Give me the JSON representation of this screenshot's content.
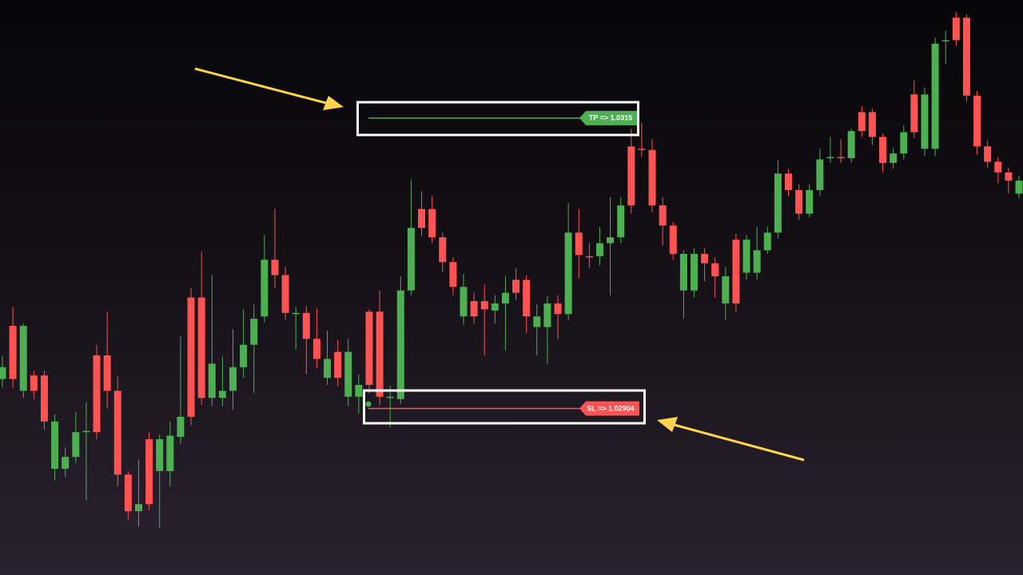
{
  "chart_data": {
    "type": "candlestick",
    "open": [
      1.02929,
      1.02974,
      1.02919,
      1.02932,
      1.02932,
      1.02853,
      1.02853,
      1.02863,
      1.02884,
      1.02949,
      1.02949,
      1.02919,
      1.02848,
      1.02817,
      1.02878,
      1.02851,
      1.02851,
      1.0288,
      1.02998,
      1.02998,
      1.02913,
      1.02913,
      1.02919,
      1.02939,
      1.02958,
      1.02982,
      1.0303,
      1.03017,
      1.02985,
      1.02985,
      1.02963,
      1.0293,
      1.02952,
      1.02914,
      1.02914,
      1.02986,
      1.02986,
      1.02913,
      1.02912,
      1.03004,
      1.03073,
      1.03073,
      1.03049,
      1.03028,
      1.02982,
      1.02995,
      1.02995,
      1.02987,
      1.02993,
      1.03013,
      1.03013,
      1.02973,
      1.02973,
      1.02993,
      1.02984,
      1.03053,
      1.03033,
      1.03033,
      1.03044,
      1.03049,
      1.03126,
      1.03124,
      1.03123,
      1.03076,
      1.03059,
      1.03004,
      1.03004,
      1.03035,
      1.03027,
      1.02993,
      1.03047,
      1.03019,
      1.03019,
      1.03038,
      1.03053,
      1.03103,
      1.03089,
      1.03069,
      1.03089,
      1.03117,
      1.03117,
      1.03116,
      1.03155,
      1.03155,
      1.03134,
      1.03112,
      1.0312,
      1.0317,
      1.03124,
      1.03124,
      1.03215,
      1.03235,
      1.03235,
      1.03169,
      1.03126,
      1.03113,
      1.03104,
      1.03086
    ],
    "high": [
      1.02949,
      1.0299,
      1.02976,
      1.02936,
      1.02936,
      1.02899,
      1.02871,
      1.02901,
      1.02909,
      1.02958,
      1.02986,
      1.02931,
      1.02851,
      1.02861,
      1.02884,
      1.02882,
      1.02893,
      1.02965,
      1.03006,
      1.03037,
      1.03017,
      1.02948,
      1.02971,
      1.02988,
      1.02992,
      1.03051,
      1.03073,
      1.03024,
      1.0299,
      1.02991,
      1.02989,
      1.0297,
      1.02962,
      1.02963,
      1.02933,
      1.02988,
      1.03004,
      1.02923,
      1.03016,
      1.03098,
      1.03088,
      1.03084,
      1.03053,
      1.03032,
      1.03018,
      1.03002,
      1.03009,
      1.03,
      1.03016,
      1.03023,
      1.03017,
      1.02992,
      1.02999,
      1.03,
      1.03078,
      1.03073,
      1.03044,
      1.03058,
      1.03083,
      1.03083,
      1.03141,
      1.03146,
      1.03132,
      1.03083,
      1.03062,
      1.03038,
      1.0304,
      1.0304,
      1.03032,
      1.03024,
      1.03052,
      1.03051,
      1.03058,
      1.03058,
      1.03114,
      1.03107,
      1.03094,
      1.03094,
      1.03124,
      1.03134,
      1.03132,
      1.03141,
      1.0316,
      1.03158,
      1.03137,
      1.03125,
      1.03144,
      1.03182,
      1.03176,
      1.03218,
      1.03224,
      1.0324,
      1.03238,
      1.03173,
      1.03131,
      1.03117,
      1.03108,
      1.03101
    ],
    "low": [
      1.02922,
      1.02922,
      1.02913,
      1.02912,
      1.02886,
      1.02843,
      1.02846,
      1.02858,
      1.02826,
      1.02878,
      1.02904,
      1.02838,
      1.0281,
      1.02804,
      1.02818,
      1.02803,
      1.02838,
      1.02874,
      1.0289,
      1.02907,
      1.02906,
      1.02906,
      1.02903,
      1.0293,
      1.02917,
      1.02977,
      1.03006,
      1.02979,
      1.02954,
      1.02933,
      1.02938,
      1.02924,
      1.02923,
      1.02906,
      1.029,
      1.02917,
      1.02907,
      1.02888,
      1.02908,
      1.03,
      1.0305,
      1.03044,
      1.0302,
      1.03,
      1.02975,
      1.02976,
      1.02949,
      1.02976,
      1.02953,
      1.02996,
      1.02968,
      1.02949,
      1.02942,
      1.02963,
      1.02979,
      1.03014,
      1.03023,
      1.03025,
      1.03,
      1.03044,
      1.03069,
      1.03117,
      1.0307,
      1.03042,
      1.0303,
      1.0298,
      1.02998,
      1.03012,
      1.02998,
      1.02979,
      1.02986,
      1.03013,
      1.03013,
      1.03035,
      1.03048,
      1.03084,
      1.03064,
      1.03066,
      1.03084,
      1.03112,
      1.03112,
      1.03112,
      1.03134,
      1.03127,
      1.03104,
      1.03107,
      1.03115,
      1.03133,
      1.03118,
      1.03118,
      1.03196,
      1.03211,
      1.03164,
      1.03119,
      1.03108,
      1.03095,
      1.03086,
      1.03082
    ],
    "close": [
      1.02939,
      1.02929,
      1.02974,
      1.02919,
      1.02893,
      1.02893,
      1.02863,
      1.02884,
      1.02885,
      1.02884,
      1.02919,
      1.02848,
      1.02817,
      1.02823,
      1.02823,
      1.02878,
      1.02881,
      1.02897,
      1.02897,
      1.02913,
      1.02942,
      1.02919,
      1.02939,
      1.02958,
      1.0298,
      1.0303,
      1.03017,
      1.02985,
      1.02985,
      1.02963,
      1.02946,
      1.02946,
      1.0293,
      1.02952,
      1.02924,
      1.02924,
      1.02914,
      1.02914,
      1.03004,
      1.03057,
      1.03057,
      1.03049,
      1.03028,
      1.03007,
      1.03007,
      1.02982,
      1.02988,
      1.02993,
      1.03002,
      1.03002,
      1.02982,
      1.02982,
      1.02993,
      1.02984,
      1.03053,
      1.03034,
      1.03032,
      1.03044,
      1.03049,
      1.03076,
      1.03076,
      1.03123,
      1.03076,
      1.03059,
      1.03035,
      1.03035,
      1.03035,
      1.03027,
      1.03016,
      1.03016,
      1.02993,
      1.03047,
      1.03038,
      1.03053,
      1.03103,
      1.03089,
      1.03069,
      1.03089,
      1.03115,
      1.03117,
      1.03116,
      1.03139,
      1.03139,
      1.03134,
      1.03112,
      1.0312,
      1.03138,
      1.03138,
      1.0317,
      1.03213,
      1.03216,
      1.03216,
      1.03169,
      1.03126,
      1.03113,
      1.03104,
      1.03097,
      1.03097
    ],
    "up_color": "#4caf50",
    "down_color": "#ff5252",
    "ylim": [
      1.02763,
      1.0325
    ],
    "levels": [
      {
        "label": "TP => 1.0315",
        "value": 1.0315,
        "color": "#4caf50"
      },
      {
        "label": "SL => 1.02904",
        "value": 1.02904,
        "color": "#ff5252"
      }
    ]
  }
}
